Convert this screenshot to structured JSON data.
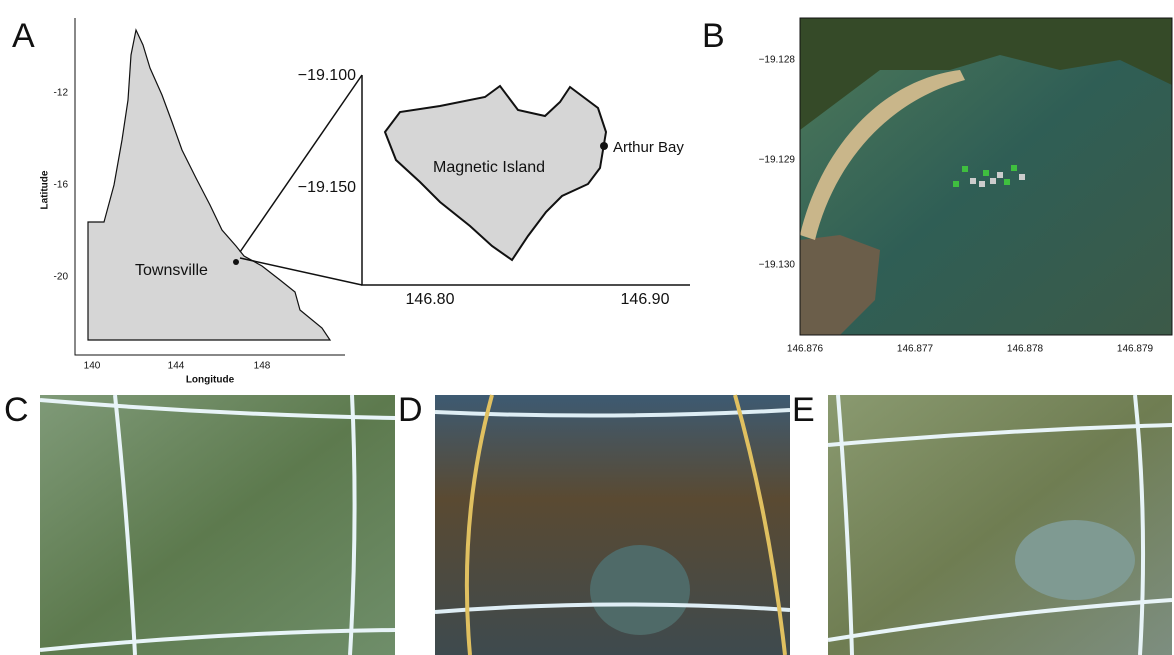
{
  "panels": [
    {
      "label": "A",
      "map": {
        "y_label": "Latitude",
        "x_label": "Longitude",
        "y_ticks": [
          "-12",
          "-16",
          "-20"
        ],
        "x_ticks": [
          "140",
          "144",
          "148"
        ],
        "place": "Townsville"
      },
      "inset": {
        "y_ticks": [
          "−19.100",
          "−19.150"
        ],
        "x_ticks": [
          "146.80",
          "146.90"
        ],
        "island": "Magnetic Island",
        "site": "Arthur Bay"
      }
    },
    {
      "label": "B",
      "y_ticks": [
        "−19.128",
        "−19.129",
        "−19.130"
      ],
      "x_ticks": [
        "146.876",
        "146.877",
        "146.878",
        "146.879"
      ]
    },
    {
      "label": "C"
    },
    {
      "label": "D"
    },
    {
      "label": "E"
    }
  ]
}
